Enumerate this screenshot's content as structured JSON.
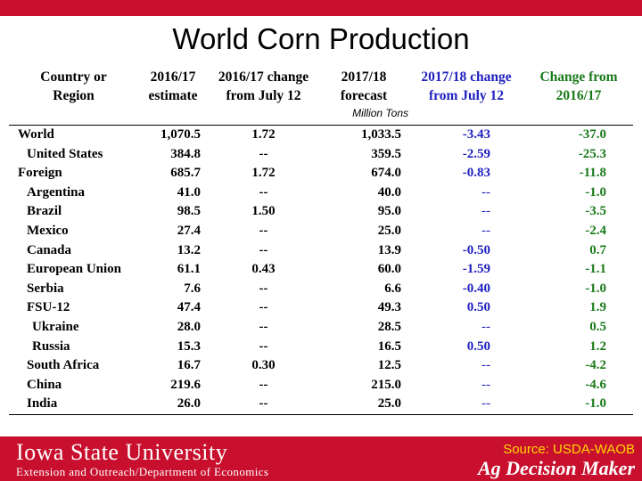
{
  "slide": {
    "title": "World Corn Production"
  },
  "colors": {
    "brand_red": "#c8102e",
    "blue_text": "#1f1fbf",
    "green_text": "#1a7a1a",
    "source_yellow": "#ffd700"
  },
  "table": {
    "headers": [
      [
        "Country or",
        "Region"
      ],
      [
        "2016/17",
        "estimate"
      ],
      [
        "2016/17 change",
        "from July 12"
      ],
      [
        "2017/18",
        "forecast"
      ],
      [
        "2017/18 change",
        "from July 12"
      ],
      [
        "Change from",
        "2016/17"
      ]
    ],
    "units": "Million Tons",
    "rows": [
      {
        "name": "World",
        "indent": 0,
        "est": "1,070.5",
        "chg1": "1.72",
        "fc": "1,033.5",
        "chg2": "-3.43",
        "chg3": "-37.0"
      },
      {
        "name": "United States",
        "indent": 1,
        "est": "384.8",
        "chg1": "--",
        "fc": "359.5",
        "chg2": "-2.59",
        "chg3": "-25.3"
      },
      {
        "name": "Foreign",
        "indent": 0,
        "est": "685.7",
        "chg1": "1.72",
        "fc": "674.0",
        "chg2": "-0.83",
        "chg3": "-11.8"
      },
      {
        "name": "Argentina",
        "indent": 1,
        "est": "41.0",
        "chg1": "--",
        "fc": "40.0",
        "chg2": "--",
        "chg3": "-1.0"
      },
      {
        "name": "Brazil",
        "indent": 1,
        "est": "98.5",
        "chg1": "1.50",
        "fc": "95.0",
        "chg2": "--",
        "chg3": "-3.5"
      },
      {
        "name": "Mexico",
        "indent": 1,
        "est": "27.4",
        "chg1": "--",
        "fc": "25.0",
        "chg2": "--",
        "chg3": "-2.4"
      },
      {
        "name": "Canada",
        "indent": 1,
        "est": "13.2",
        "chg1": "--",
        "fc": "13.9",
        "chg2": "-0.50",
        "chg3": "0.7"
      },
      {
        "name": "European Union",
        "indent": 1,
        "est": "61.1",
        "chg1": "0.43",
        "fc": "60.0",
        "chg2": "-1.59",
        "chg3": "-1.1"
      },
      {
        "name": "Serbia",
        "indent": 1,
        "est": "7.6",
        "chg1": "--",
        "fc": "6.6",
        "chg2": "-0.40",
        "chg3": "-1.0"
      },
      {
        "name": "FSU-12",
        "indent": 1,
        "est": "47.4",
        "chg1": "--",
        "fc": "49.3",
        "chg2": "0.50",
        "chg3": "1.9"
      },
      {
        "name": "Ukraine",
        "indent": 2,
        "est": "28.0",
        "chg1": "--",
        "fc": "28.5",
        "chg2": "--",
        "chg3": "0.5"
      },
      {
        "name": "Russia",
        "indent": 2,
        "est": "15.3",
        "chg1": "--",
        "fc": "16.5",
        "chg2": "0.50",
        "chg3": "1.2"
      },
      {
        "name": "South Africa",
        "indent": 1,
        "est": "16.7",
        "chg1": "0.30",
        "fc": "12.5",
        "chg2": "--",
        "chg3": "-4.2"
      },
      {
        "name": "China",
        "indent": 1,
        "est": "219.6",
        "chg1": "--",
        "fc": "215.0",
        "chg2": "--",
        "chg3": "-4.6"
      },
      {
        "name": "India",
        "indent": 1,
        "est": "26.0",
        "chg1": "--",
        "fc": "25.0",
        "chg2": "--",
        "chg3": "-1.0"
      }
    ]
  },
  "footer": {
    "logo": "Iowa State University",
    "dept": "Extension and Outreach/Department of Economics",
    "source": "Source: USDA-WAOB",
    "brand": "Ag Decision Maker"
  }
}
